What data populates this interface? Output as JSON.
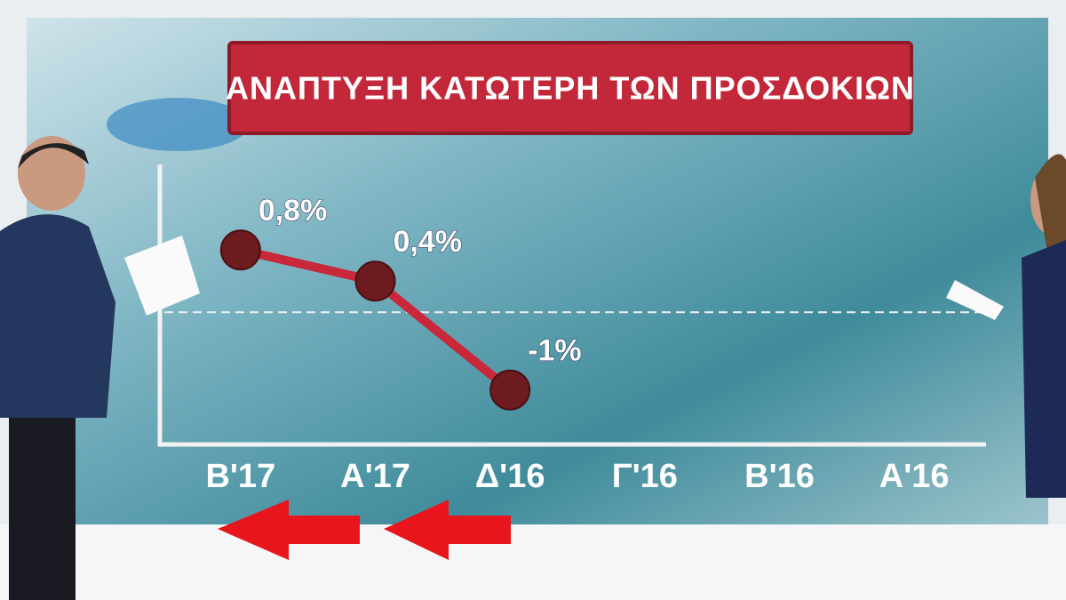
{
  "chart_data": {
    "type": "line",
    "title": "ΑΝΑΠΤΥΞΗ ΚΑΤΩΤΕΡΗ ΤΩΝ ΠΡΟΣΔΟΚΙΩΝ",
    "categories": [
      "Β'17",
      "Α'17",
      "Δ'16",
      "Γ'16",
      "Β'16",
      "Α'16"
    ],
    "values": [
      0.8,
      0.4,
      -1,
      null,
      null,
      null
    ],
    "value_labels": [
      "0,8%",
      "0,4%",
      "-1%",
      null,
      null,
      null
    ],
    "color": "#c8283a",
    "marker_color": "#6e1b1f",
    "ylim": [
      -1.7,
      1.9
    ],
    "reference_line": 0
  }
}
